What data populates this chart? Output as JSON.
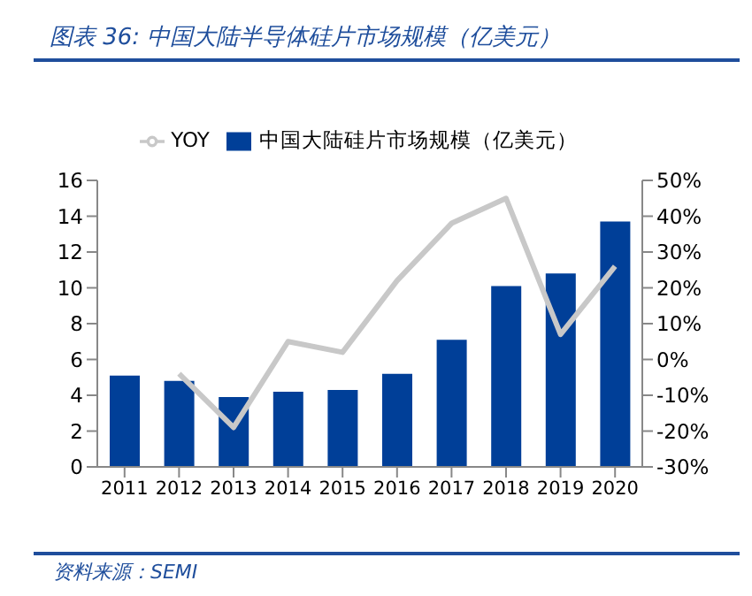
{
  "chart_data": {
    "type": "bar",
    "title": "图表 36:  中国大陆半导体硅片市场规模（亿美元）",
    "categories": [
      "2011",
      "2012",
      "2013",
      "2014",
      "2015",
      "2016",
      "2017",
      "2018",
      "2019",
      "2020"
    ],
    "series": [
      {
        "name": "中国大陆硅片市场规模（亿美元）",
        "color": "#003f98",
        "values": [
          5.1,
          4.8,
          3.9,
          4.2,
          4.3,
          5.2,
          7.1,
          10.1,
          10.8,
          13.7
        ]
      },
      {
        "name": "YOY",
        "type": "line",
        "axis": "y2",
        "color": "#c8c8c8",
        "values": [
          null,
          -4,
          -19,
          5,
          2,
          22,
          38,
          45,
          7,
          26
        ]
      }
    ],
    "ylim": [
      0,
      16
    ],
    "yticks": [
      0,
      2,
      4,
      6,
      8,
      10,
      12,
      14,
      16
    ],
    "y2lim": [
      -30,
      50
    ],
    "y2ticks": [
      {
        "value": -30,
        "label": "-30%"
      },
      {
        "value": -20,
        "label": "-20%"
      },
      {
        "value": -10,
        "label": "-10%"
      },
      {
        "value": 0,
        "label": "0%"
      },
      {
        "value": 10,
        "label": "10%"
      },
      {
        "value": 20,
        "label": "20%"
      },
      {
        "value": 30,
        "label": "30%"
      },
      {
        "value": 40,
        "label": "40%"
      },
      {
        "value": 50,
        "label": "50%"
      }
    ],
    "grid": false,
    "legend": "top",
    "marker": "none",
    "annotations": [
      "资料来源：SEMI"
    ]
  }
}
